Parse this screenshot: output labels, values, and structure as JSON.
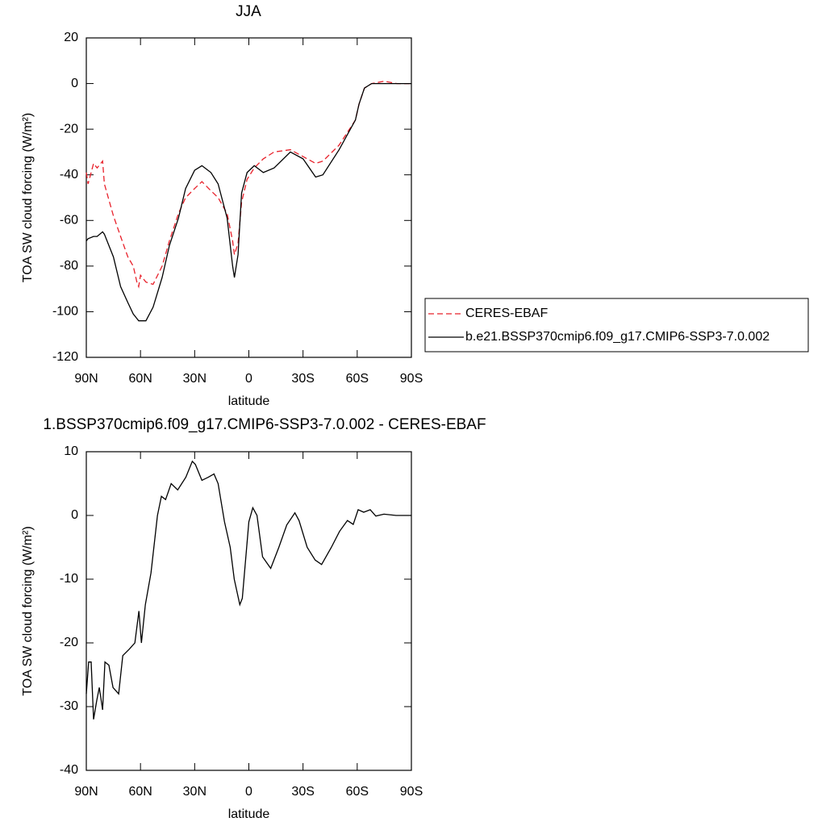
{
  "chart_data": [
    {
      "type": "line",
      "title": "JJA",
      "xlabel": "latitude",
      "ylabel": "TOA SW cloud forcing (W/m²)",
      "xlim": [
        90,
        -90
      ],
      "xticks": [
        {
          "value": 90,
          "label": "90N"
        },
        {
          "value": 60,
          "label": "60N"
        },
        {
          "value": 30,
          "label": "30N"
        },
        0,
        {
          "value": -30,
          "label": "30S"
        },
        {
          "value": -60,
          "label": "60S"
        },
        {
          "value": -90,
          "label": "90S"
        }
      ],
      "ylim": [
        -120,
        20
      ],
      "yticks": [
        20,
        0,
        -20,
        -40,
        -60,
        -80,
        -100,
        -120
      ],
      "legend": "right",
      "x": [
        90,
        89,
        86,
        84,
        81,
        80,
        75,
        71,
        67,
        64,
        62,
        61,
        60,
        57,
        53,
        48,
        44,
        39,
        35,
        30,
        26,
        21,
        17,
        12,
        9,
        8,
        6,
        4,
        1,
        -3,
        -8,
        -14,
        -23,
        -30,
        -37,
        -41,
        -50,
        -59,
        -61,
        -64,
        -68,
        -75,
        -82,
        -90
      ],
      "series": [
        {
          "name": "CERES-EBAF",
          "color": "#e8202a",
          "dashed": true,
          "values": [
            -39,
            -44,
            -35,
            -37,
            -34,
            -44,
            -58,
            -67,
            -76,
            -80,
            -87,
            -89,
            -84,
            -87,
            -88,
            -80,
            -69,
            -57,
            -50,
            -46,
            -43,
            -47,
            -50,
            -57,
            -69,
            -75,
            -70,
            -52,
            -42,
            -37,
            -33,
            -30,
            -29,
            -32,
            -35,
            -34,
            -27,
            -16,
            -9,
            -2,
            0,
            1,
            0,
            0
          ]
        },
        {
          "name": "b.e21.BSSP370cmip6.f09_g17.CMIP6-SSP3-7.0.002",
          "color": "#000000",
          "dashed": false,
          "values": [
            -69,
            -68,
            -67,
            -67,
            -65,
            -66,
            -76,
            -89,
            -96,
            -101,
            -103,
            -104,
            -104,
            -104,
            -98,
            -85,
            -71,
            -59,
            -46,
            -38,
            -36,
            -39,
            -44,
            -59,
            -80,
            -85,
            -75,
            -48,
            -39,
            -36,
            -39,
            -37,
            -30,
            -33,
            -41,
            -40,
            -29,
            -16,
            -9,
            -2,
            0,
            0,
            0,
            0
          ]
        }
      ]
    },
    {
      "type": "line",
      "title": "1.BSSP370cmip6.f09_g17.CMIP6-SSP3-7.0.002 - CERES-EBAF",
      "xlabel": "latitude",
      "ylabel": "TOA SW cloud forcing (W/m²)",
      "xlim": [
        90,
        -90
      ],
      "xticks": [
        {
          "value": 90,
          "label": "90N"
        },
        {
          "value": 60,
          "label": "60N"
        },
        {
          "value": 30,
          "label": "30N"
        },
        0,
        {
          "value": -30,
          "label": "30S"
        },
        {
          "value": -60,
          "label": "60S"
        },
        {
          "value": -90,
          "label": "90S"
        }
      ],
      "ylim": [
        -40,
        10
      ],
      "yticks": [
        10,
        0,
        -10,
        -20,
        -30,
        -40
      ],
      "x": [
        90,
        88.7,
        87.3,
        86,
        84.2,
        82.8,
        81,
        79.7,
        77.5,
        75.2,
        72.1,
        69.8,
        66.3,
        63.1,
        60.9,
        59.5,
        57.3,
        54.2,
        50.6,
        48.4,
        46.1,
        43,
        39.4,
        34.9,
        31.3,
        29.6,
        26,
        22.4,
        19.3,
        17,
        13.5,
        10.3,
        8.1,
        5,
        3.6,
        0,
        -2.2,
        -4.5,
        -7.6,
        -12.1,
        -16.6,
        -21,
        -25.5,
        -27.8,
        -32.3,
        -36.7,
        -40.3,
        -45.7,
        -50.2,
        -54.6,
        -57.8,
        -60.5,
        -63.6,
        -67.2,
        -70.3,
        -74.8,
        -81.5,
        -90
      ],
      "series": [
        {
          "color": "#000000",
          "dashed": false,
          "values": [
            -28,
            -23,
            -23,
            -32,
            -29,
            -27,
            -30.5,
            -23,
            -23.5,
            -27,
            -28,
            -22,
            -21,
            -20,
            -15,
            -20,
            -14,
            -9,
            0,
            3,
            2.5,
            5,
            4,
            6,
            8.5,
            8,
            5.5,
            6,
            6.5,
            5,
            -1,
            -5,
            -10,
            -14,
            -13,
            -1,
            1.2,
            0,
            -6.5,
            -8.3,
            -5,
            -1.5,
            0.4,
            -0.8,
            -5,
            -7,
            -7.7,
            -5,
            -2.5,
            -0.8,
            -1.4,
            0.9,
            0.5,
            0.9,
            -0.1,
            0.2,
            0,
            0
          ]
        }
      ]
    }
  ]
}
